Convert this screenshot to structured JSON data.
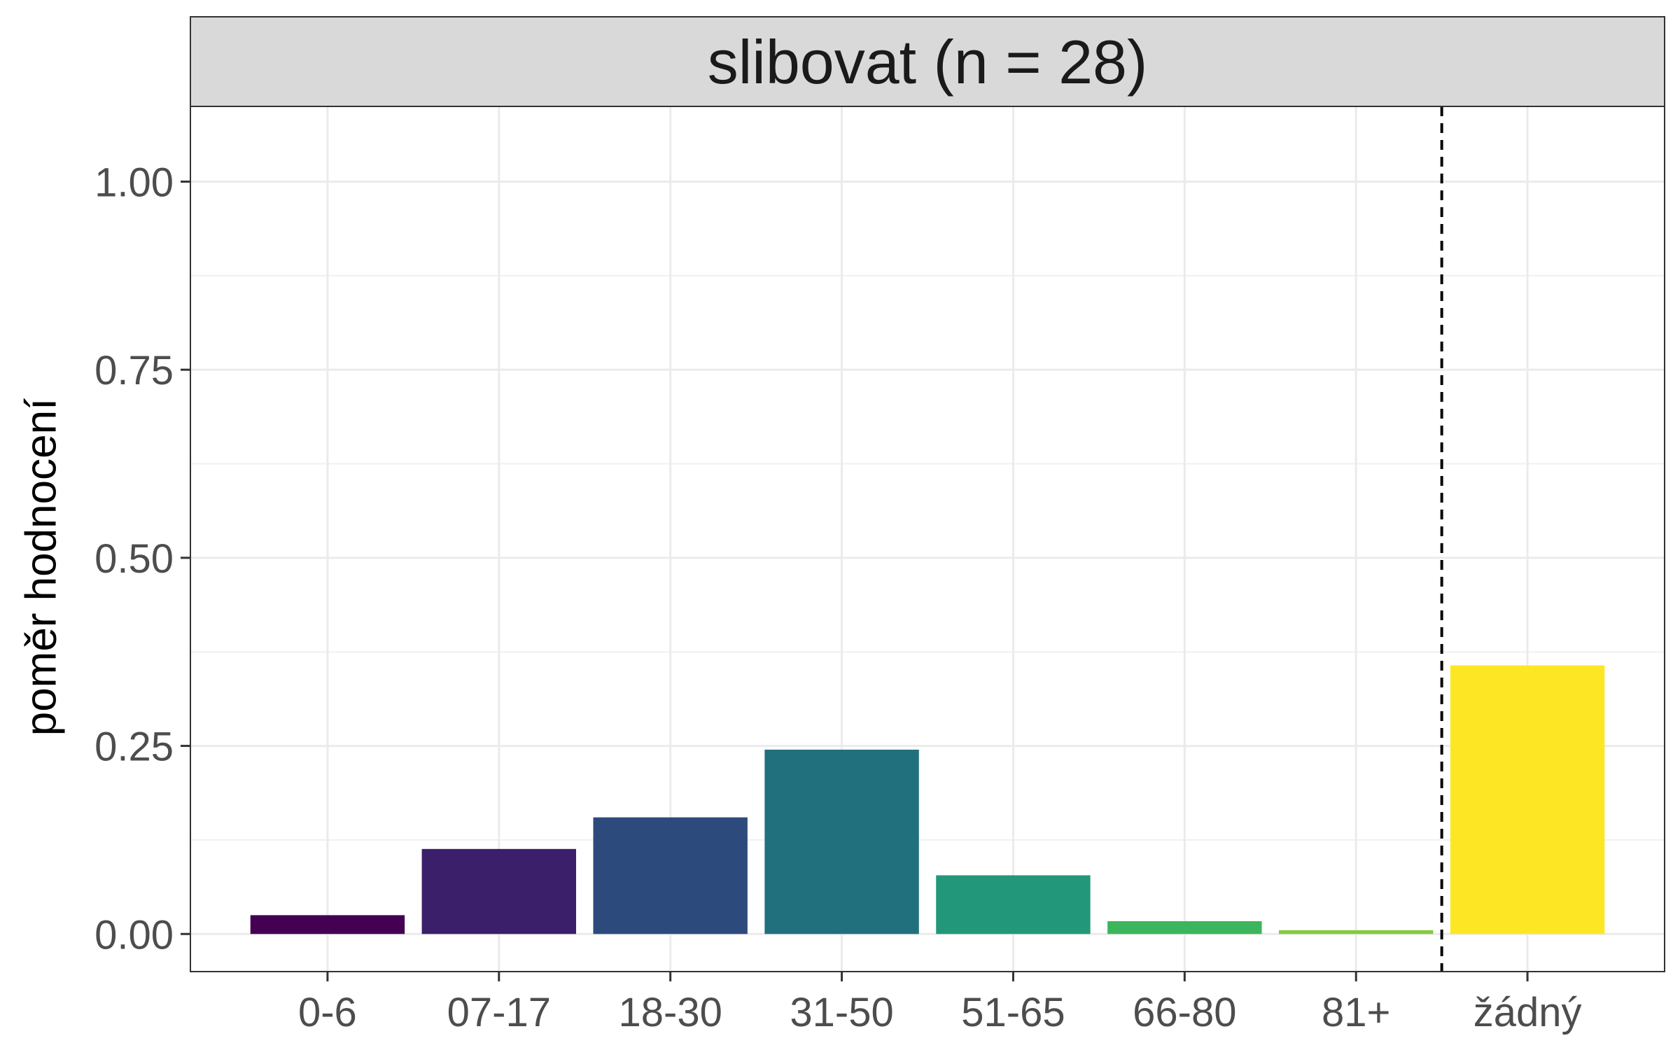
{
  "chart_data": {
    "type": "bar",
    "facet_label": "slibovat (n = 28)",
    "ylabel": "poměr hodnocení",
    "xlabel": "",
    "categories": [
      "0-6",
      "07-17",
      "18-30",
      "31-50",
      "51-65",
      "66-80",
      "81+",
      "žádný"
    ],
    "values": [
      0.025,
      0.113,
      0.155,
      0.245,
      0.078,
      0.017,
      0.005,
      0.357
    ],
    "colors": [
      "#440154",
      "#3b1f6b",
      "#2c4a7c",
      "#21707e",
      "#23977a",
      "#3cb65c",
      "#82cc3c",
      "#fde724"
    ],
    "ylim": [
      -0.05,
      1.1
    ],
    "yticks": [
      0.0,
      0.25,
      0.5,
      0.75,
      1.0
    ],
    "ytick_labels": [
      "0.00",
      "0.25",
      "0.50",
      "0.75",
      "1.00"
    ],
    "separator_after_category": "81+",
    "grid": true
  }
}
